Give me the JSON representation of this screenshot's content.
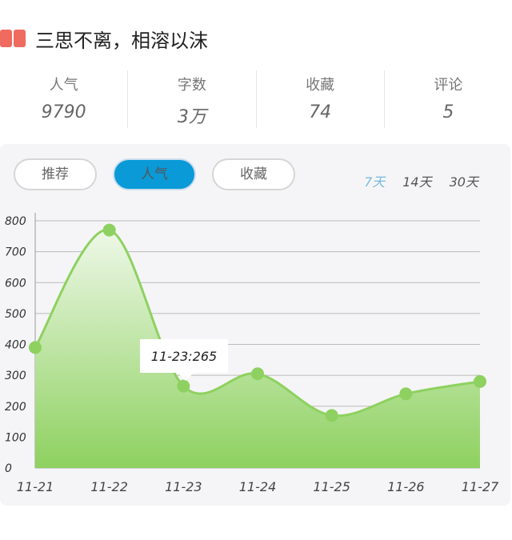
{
  "header": {
    "title": "三思不离，相溶以沫",
    "icon": "book-icon",
    "icon_color": "#ef6a5f"
  },
  "stats": [
    {
      "label": "人气",
      "value": "9790"
    },
    {
      "label": "字数",
      "value": "3万"
    },
    {
      "label": "收藏",
      "value": "74"
    },
    {
      "label": "评论",
      "value": "5"
    }
  ],
  "tabs": [
    {
      "label": "推荐"
    },
    {
      "label": "人气",
      "active": true
    },
    {
      "label": "收藏"
    }
  ],
  "ranges": [
    {
      "label": "7天",
      "active": true
    },
    {
      "label": "14天"
    },
    {
      "label": "30天"
    }
  ],
  "chart_data": {
    "type": "area",
    "categories": [
      "11-21",
      "11-22",
      "11-23",
      "11-24",
      "11-25",
      "11-26",
      "11-27"
    ],
    "values": [
      390,
      770,
      265,
      305,
      170,
      240,
      280
    ],
    "ylim": [
      0,
      800
    ],
    "yticks": [
      "0",
      "100",
      "200",
      "300",
      "400",
      "500",
      "600",
      "700",
      "800"
    ],
    "grid": true,
    "color": "#8ed160",
    "tooltip": "11-23:265"
  }
}
